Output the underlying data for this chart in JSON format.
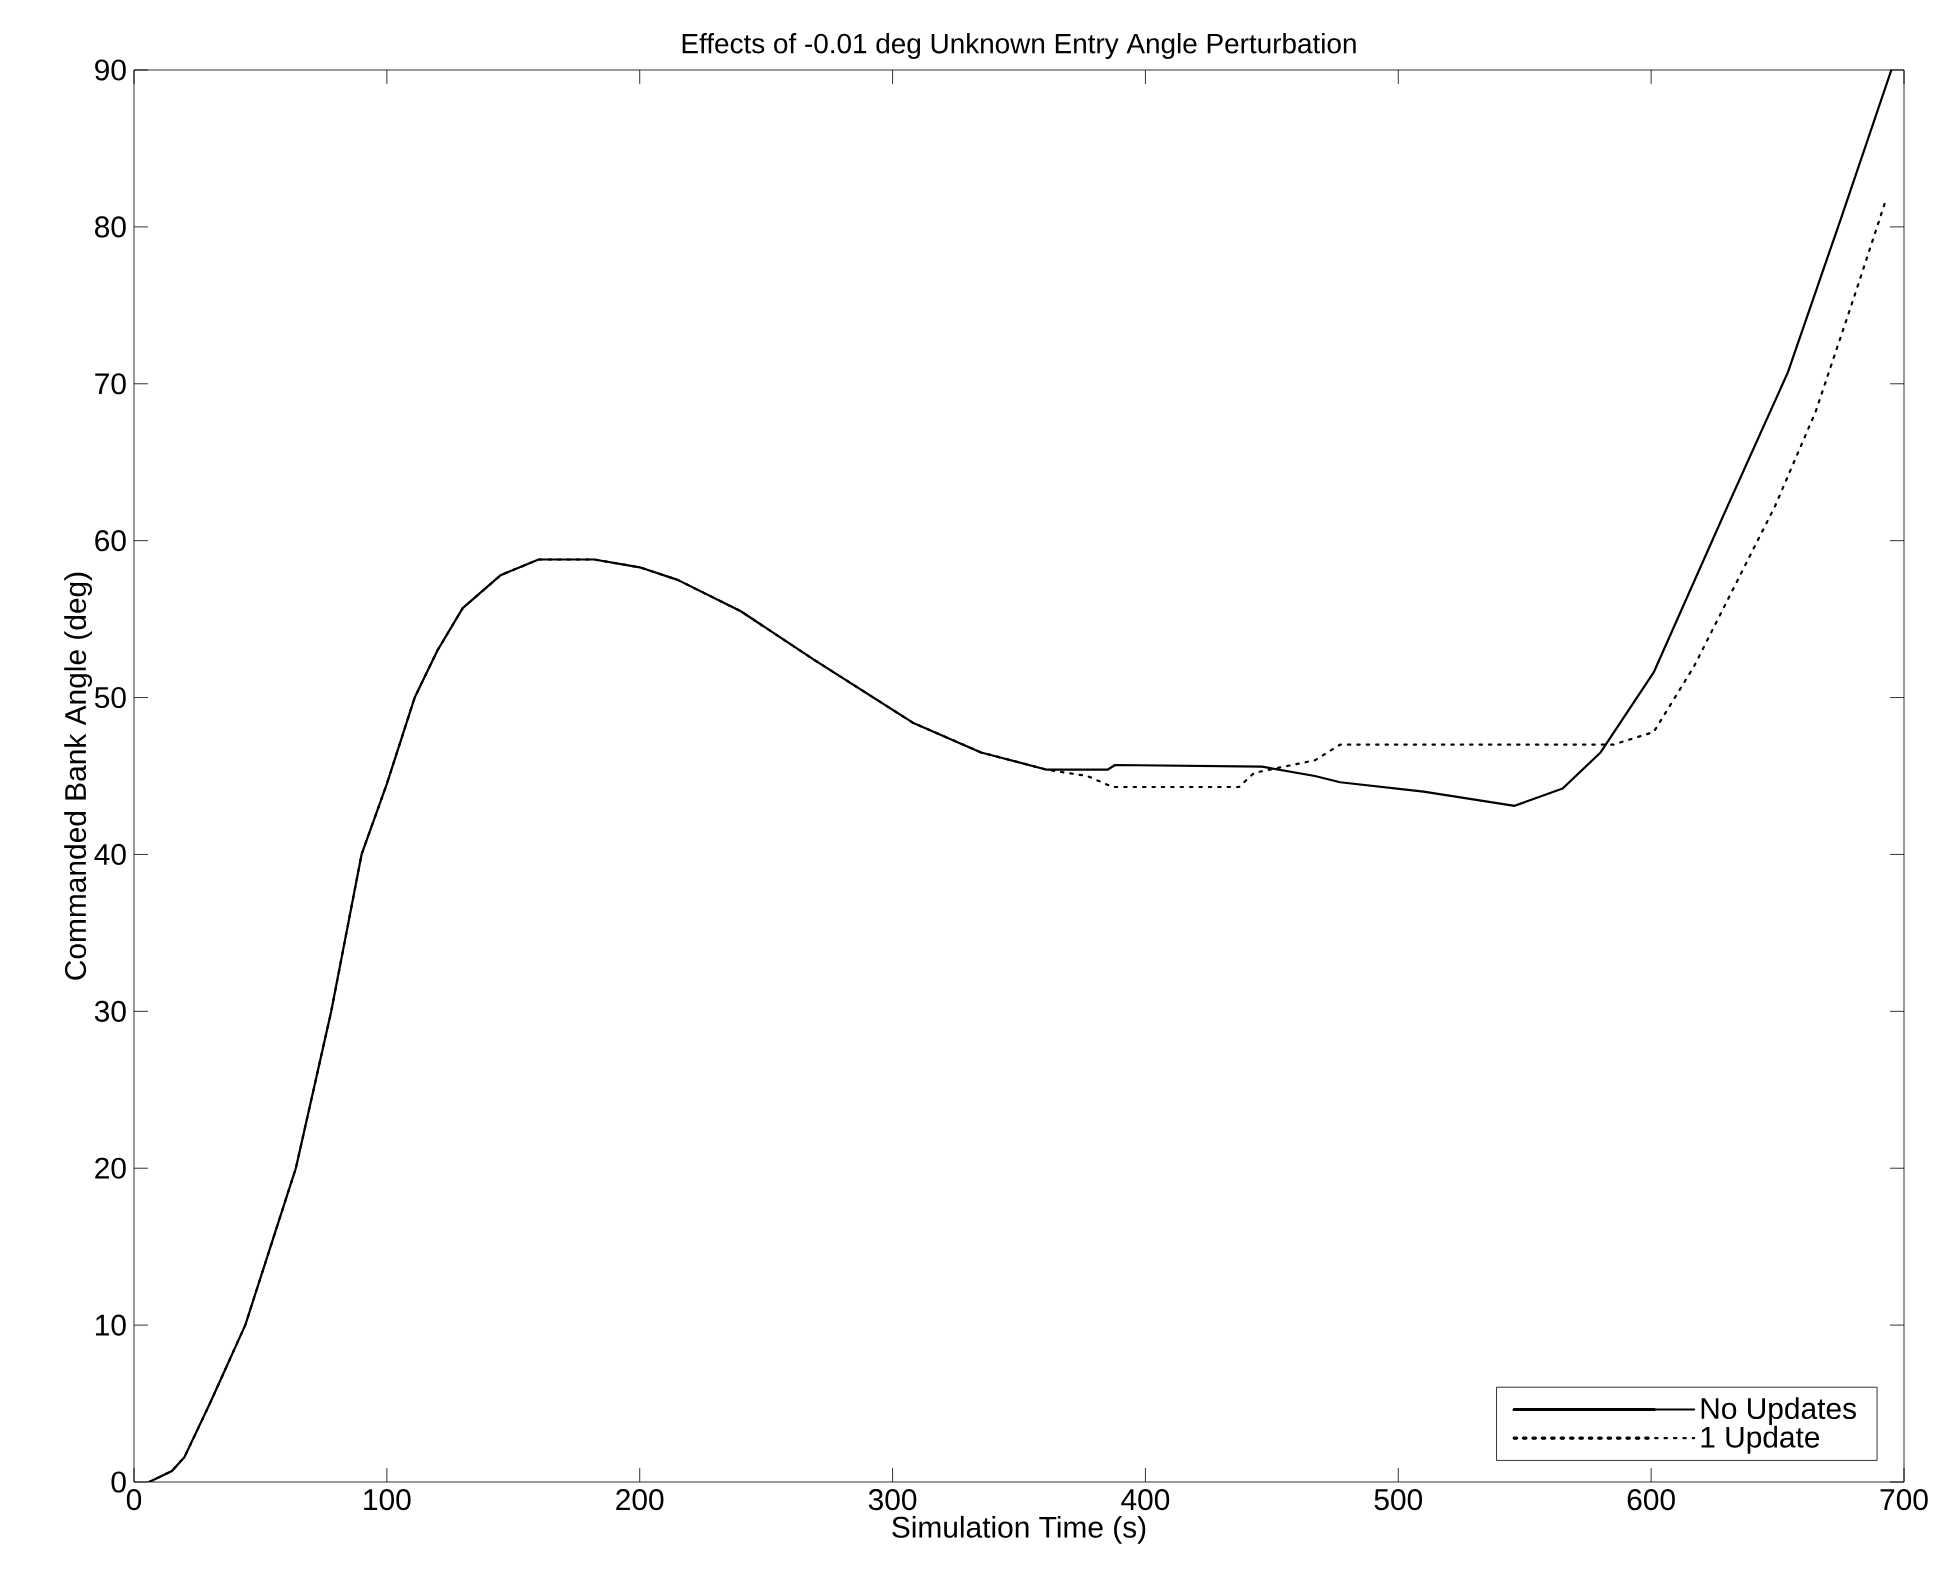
{
  "chart_data": {
    "type": "line",
    "title": "Effects of -0.01 deg Unknown Entry Angle Perturbation",
    "xlabel": "Simulation Time (s)",
    "ylabel": "Commanded Bank Angle (deg)",
    "xlim": [
      0,
      700
    ],
    "ylim": [
      0,
      90
    ],
    "xticks": [
      0,
      100,
      200,
      300,
      400,
      500,
      600,
      700
    ],
    "yticks": [
      0,
      10,
      20,
      30,
      40,
      50,
      60,
      70,
      80,
      90
    ],
    "grid": false,
    "legend": "bottom right",
    "series": [
      {
        "name": "No Updates",
        "color": "#000000",
        "line_style": "solid",
        "x": [
          6,
          15,
          20,
          30,
          44,
          54,
          64,
          71,
          78,
          84,
          90,
          100,
          111,
          120,
          130,
          145,
          160,
          182,
          200,
          215,
          240,
          269,
          308,
          335,
          361,
          385,
          388,
          446,
          467,
          477,
          510,
          546,
          565,
          580,
          601,
          628,
          654,
          675,
          695
        ],
        "values": [
          0,
          0.7,
          1.6,
          5,
          10,
          15,
          20,
          25,
          30,
          35,
          40,
          44.5,
          50,
          53,
          55.7,
          57.8,
          58.8,
          58.8,
          58.3,
          57.5,
          55.5,
          52.4,
          48.4,
          46.5,
          45.4,
          45.4,
          45.7,
          45.6,
          45,
          44.6,
          44,
          43.1,
          44.2,
          46.5,
          51.6,
          61.4,
          70.7,
          80.5,
          90
        ]
      },
      {
        "name": "1 Update",
        "color": "#000000",
        "line_style": "dotted",
        "x": [
          6,
          15,
          20,
          30,
          44,
          54,
          64,
          71,
          78,
          84,
          90,
          100,
          111,
          120,
          130,
          145,
          160,
          182,
          200,
          215,
          240,
          269,
          308,
          335,
          361,
          377,
          387,
          437,
          443,
          467,
          477,
          585,
          601,
          617,
          633,
          649,
          665,
          680,
          693
        ],
        "values": [
          0,
          0.7,
          1.6,
          5,
          10,
          15,
          20,
          25,
          30,
          35,
          40,
          44.5,
          50,
          53,
          55.7,
          57.8,
          58.8,
          58.8,
          58.3,
          57.5,
          55.5,
          52.4,
          48.4,
          46.5,
          45.4,
          45,
          44.3,
          44.3,
          45.2,
          46,
          47,
          47,
          47.8,
          52,
          57.1,
          62.2,
          68.2,
          75.4,
          81.8
        ]
      }
    ]
  }
}
